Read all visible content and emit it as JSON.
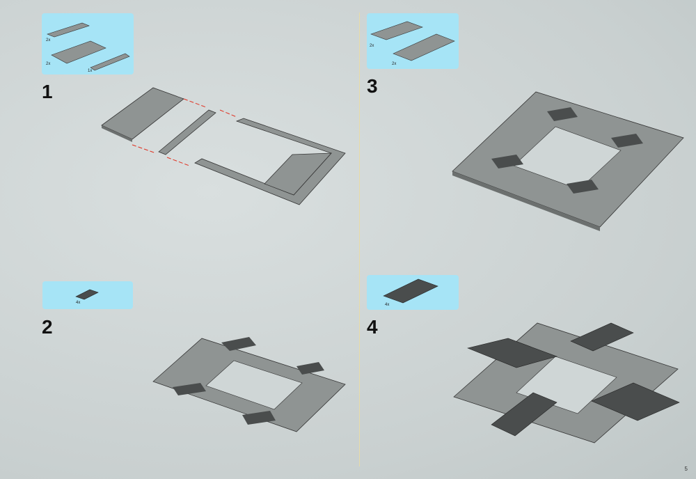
{
  "steps": [
    {
      "number": "1",
      "parts": [
        {
          "qty": "2x"
        },
        {
          "qty": "2x"
        },
        {
          "qty": "1x"
        }
      ]
    },
    {
      "number": "2",
      "parts": [
        {
          "qty": "4x"
        }
      ]
    },
    {
      "number": "3",
      "parts": [
        {
          "qty": "2x"
        },
        {
          "qty": "2x"
        }
      ]
    },
    {
      "number": "4",
      "parts": [
        {
          "qty": "4x"
        }
      ]
    }
  ],
  "page_number": "5",
  "colors": {
    "callout": "#a6e4f6",
    "plate_light": "#8f9493",
    "plate_dark": "#4a4d4d",
    "arrow": "#e03020"
  }
}
